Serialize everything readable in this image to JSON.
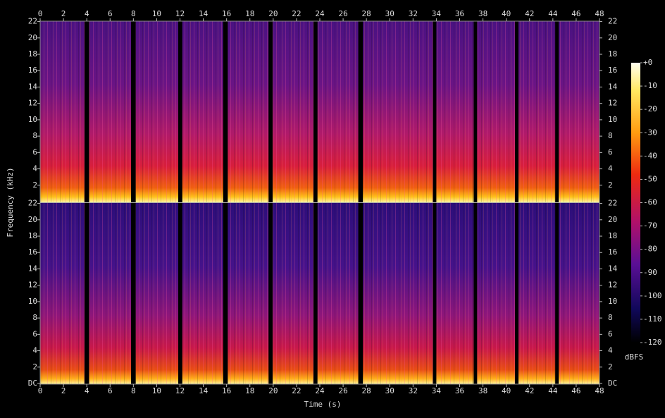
{
  "chart_data": {
    "type": "spectrogram",
    "x_label": "Time (s)",
    "y_label": "Frequency (kHz)",
    "xlim": [
      0,
      48
    ],
    "xticks": [
      0,
      2,
      4,
      6,
      8,
      10,
      12,
      14,
      16,
      18,
      20,
      22,
      24,
      26,
      28,
      30,
      32,
      34,
      36,
      38,
      40,
      42,
      44,
      46,
      48
    ],
    "channels": [
      {
        "ylim": [
          0,
          22.05
        ],
        "yticks": [
          2,
          4,
          6,
          8,
          10,
          12,
          14,
          16,
          18,
          20,
          22
        ]
      },
      {
        "ylim": [
          0,
          22.05
        ],
        "yticks": [
          {
            "value": 0,
            "label": "DC"
          },
          2,
          4,
          6,
          8,
          10,
          12,
          14,
          16,
          18,
          20,
          22
        ]
      }
    ],
    "gaps": [
      [
        3.8,
        4.2
      ],
      [
        7.8,
        8.2
      ],
      [
        11.85,
        12.2
      ],
      [
        15.7,
        16.1
      ],
      [
        19.6,
        19.95
      ],
      [
        23.45,
        23.8
      ],
      [
        27.3,
        27.7
      ],
      [
        33.7,
        34.0
      ],
      [
        37.2,
        37.5
      ],
      [
        40.75,
        41.05
      ],
      [
        44.2,
        44.5
      ]
    ],
    "colorbar": {
      "label": "dBFS",
      "lim": [
        -120,
        0
      ],
      "ticks": [
        {
          "value": 0,
          "label": "+0"
        },
        -10,
        -20,
        -30,
        -40,
        -50,
        -60,
        -70,
        -80,
        -90,
        -100,
        -110,
        -120
      ]
    }
  }
}
